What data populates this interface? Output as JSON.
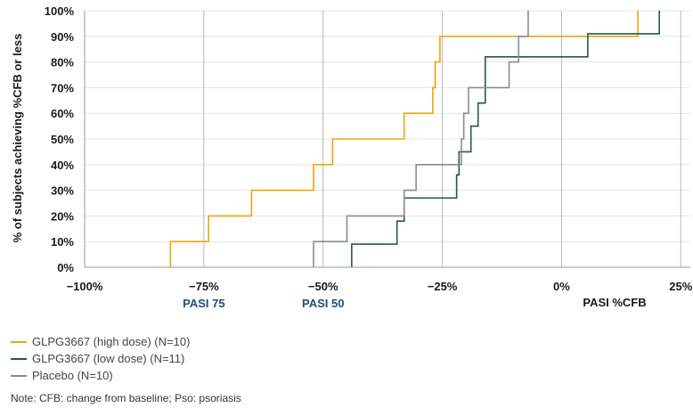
{
  "chart_data": {
    "type": "line",
    "step": true,
    "xlabel": "PASI %CFB",
    "ylabel": "% of subjects achieving %CFB or less",
    "xlim": [
      -100,
      27
    ],
    "ylim": [
      0,
      100
    ],
    "x_ticks": [
      -100,
      -75,
      -50,
      -25,
      0,
      25
    ],
    "x_tick_labels": [
      "−100%",
      "−75%",
      "−50%",
      "−25%",
      "0%",
      "25%"
    ],
    "y_ticks": [
      0,
      10,
      20,
      30,
      40,
      50,
      60,
      70,
      80,
      90,
      100
    ],
    "y_tick_labels": [
      "0%",
      "10%",
      "20%",
      "30%",
      "40%",
      "50%",
      "60%",
      "70%",
      "80%",
      "90%",
      "100%"
    ],
    "vertical_gridlines": [
      -75,
      -50,
      -25,
      0,
      25
    ],
    "grid_horizontal": true,
    "annotations": [
      {
        "text": "PASI 75",
        "x": -75
      },
      {
        "text": "PASI 50",
        "x": -50
      }
    ],
    "series": [
      {
        "name": "GLPG3667 (high dose) (N=10)",
        "color": "#f0a30a",
        "x": [
          -82,
          -74,
          -65,
          -52,
          -48,
          -33,
          -27,
          -26.5,
          -25.5,
          16
        ],
        "y": [
          10,
          20,
          30,
          40,
          50,
          60,
          70,
          80,
          90,
          100
        ]
      },
      {
        "name": "GLPG3667 (low dose) (N=11)",
        "color": "#1d5c4d",
        "x": [
          -44,
          -34.5,
          -33,
          -22,
          -21.5,
          -19,
          -17.5,
          -16,
          -16,
          5.5,
          20.5
        ],
        "y": [
          9,
          18,
          27,
          36,
          45,
          55,
          64,
          73,
          82,
          91,
          100
        ]
      },
      {
        "name": "Placebo (N=10)",
        "color": "#8c8c8c",
        "x": [
          -52,
          -45,
          -33,
          -30.5,
          -21,
          -20.5,
          -19.5,
          -11,
          -9,
          -7
        ],
        "y": [
          10,
          20,
          30,
          40,
          50,
          60,
          70,
          80,
          90,
          100
        ]
      }
    ]
  },
  "note": "Note: CFB: change from baseline; Pso: psoriasis"
}
